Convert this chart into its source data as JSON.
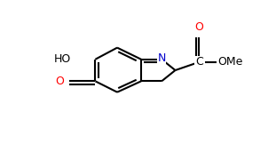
{
  "bg": "#ffffff",
  "lc": "#000000",
  "nc": "#0000cd",
  "oc": "#ff0000",
  "lw": 1.5,
  "fs": 9,
  "bl": 0.38,
  "xlim": [
    0.0,
    3.11
  ],
  "ylim": [
    0.0,
    1.71
  ]
}
